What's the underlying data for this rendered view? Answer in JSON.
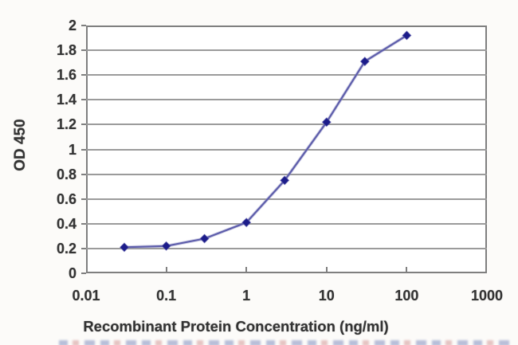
{
  "chart_data": {
    "type": "line",
    "title": "",
    "xlabel": "Recombinant Protein Concentration (ng/ml)",
    "ylabel": "OD 450",
    "x_scale": "log",
    "xlim": [
      0.01,
      1000
    ],
    "ylim": [
      0,
      2
    ],
    "x_tick_values": [
      0.01,
      0.1,
      1,
      10,
      100,
      1000
    ],
    "x_tick_labels": [
      "0.01",
      "0.1",
      "1",
      "10",
      "100",
      "1000"
    ],
    "y_tick_values": [
      0,
      0.2,
      0.4,
      0.6,
      0.8,
      1,
      1.2,
      1.4,
      1.6,
      1.8,
      2
    ],
    "y_tick_labels": [
      "0",
      "0.2",
      "0.4",
      "0.6",
      "0.8",
      "1",
      "1.2",
      "1.4",
      "1.6",
      "1.8",
      "2"
    ],
    "grid": "horizontal",
    "legend": "none",
    "series": [
      {
        "name": "OD 450",
        "x": [
          0.03,
          0.1,
          0.3,
          1,
          3,
          10,
          30,
          100
        ],
        "y": [
          0.21,
          0.22,
          0.28,
          0.41,
          0.75,
          1.22,
          1.71,
          1.92
        ],
        "marker": "diamond",
        "line_color": "#5d5dab",
        "line_halo_color": "#9a9ac8",
        "marker_color": "#1c1c8a"
      }
    ]
  },
  "colors": {
    "grid": "#9b9b9b",
    "axis": "#7f7f7f",
    "text": "#333333",
    "background": "#fcfbf9",
    "plot_background": "#ffffff"
  }
}
